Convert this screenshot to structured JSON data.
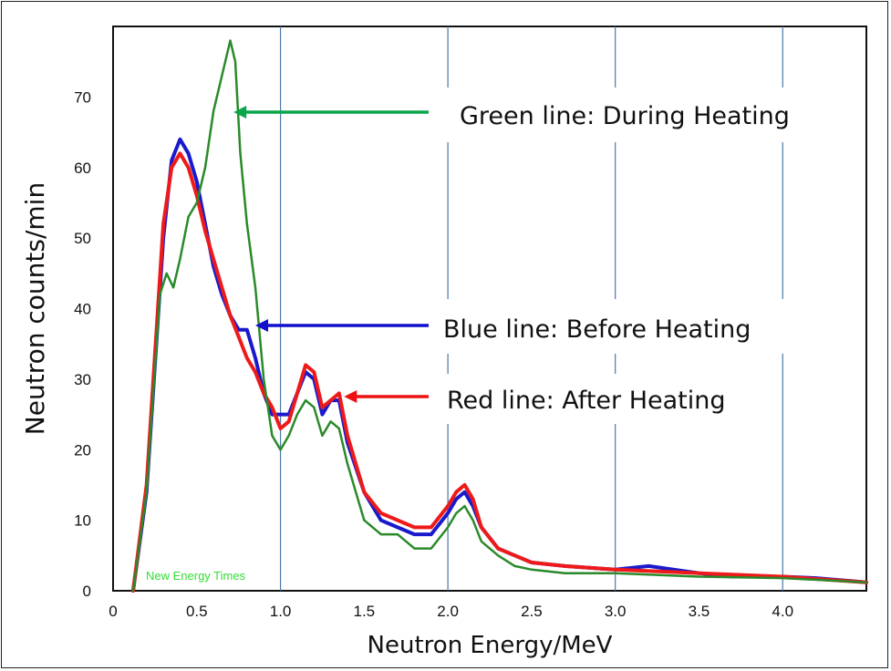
{
  "chart_data": {
    "type": "line",
    "title": "",
    "xlabel": "Neutron Energy/MeV",
    "ylabel": "Neutron counts/min",
    "xlim": [
      0,
      4.5
    ],
    "ylim": [
      0,
      80
    ],
    "x_ticks": [
      "0",
      "0.5",
      "1.0",
      "1.5",
      "2.0",
      "2.5",
      "3.0",
      "3.5",
      "4.0"
    ],
    "y_ticks": [
      "0",
      "10",
      "20",
      "30",
      "40",
      "50",
      "60",
      "70"
    ],
    "vertical_gridlines_at": [
      1.0,
      2.0,
      3.0,
      4.0
    ],
    "grid": "vertical lines only",
    "watermark": "New Energy Times",
    "annotations": [
      {
        "text": "Green line: During Heating",
        "color": "#0aa64a",
        "arrow_tip": [
          0.72,
          68
        ]
      },
      {
        "text": "Blue line: Before Heating",
        "color": "#1010cc",
        "arrow_tip": [
          0.85,
          37
        ]
      },
      {
        "text": "Red line: After Heating",
        "color": "#ee1111",
        "arrow_tip": [
          1.38,
          27
        ]
      }
    ],
    "series": [
      {
        "color": "#1a1acc",
        "points": [
          [
            0.12,
            0
          ],
          [
            0.2,
            14
          ],
          [
            0.3,
            50
          ],
          [
            0.35,
            61
          ],
          [
            0.4,
            64
          ],
          [
            0.45,
            62
          ],
          [
            0.5,
            58
          ],
          [
            0.55,
            52
          ],
          [
            0.6,
            46
          ],
          [
            0.65,
            42
          ],
          [
            0.7,
            39
          ],
          [
            0.75,
            37
          ],
          [
            0.8,
            37
          ],
          [
            0.85,
            33
          ],
          [
            0.9,
            28
          ],
          [
            0.95,
            25
          ],
          [
            1.0,
            25
          ],
          [
            1.05,
            25
          ],
          [
            1.1,
            28
          ],
          [
            1.15,
            31
          ],
          [
            1.2,
            30
          ],
          [
            1.25,
            25
          ],
          [
            1.3,
            27
          ],
          [
            1.35,
            27
          ],
          [
            1.4,
            21
          ],
          [
            1.5,
            14
          ],
          [
            1.6,
            10
          ],
          [
            1.7,
            9
          ],
          [
            1.8,
            8
          ],
          [
            1.9,
            8
          ],
          [
            2.0,
            11
          ],
          [
            2.05,
            13
          ],
          [
            2.1,
            14
          ],
          [
            2.15,
            12
          ],
          [
            2.2,
            9
          ],
          [
            2.3,
            6
          ],
          [
            2.4,
            5
          ],
          [
            2.5,
            4
          ],
          [
            2.7,
            3.5
          ],
          [
            3.0,
            3
          ],
          [
            3.2,
            3.5
          ],
          [
            3.5,
            2.5
          ],
          [
            3.7,
            2
          ],
          [
            4.0,
            2
          ],
          [
            4.2,
            1.8
          ],
          [
            4.5,
            1.2
          ]
        ]
      },
      {
        "color": "#ee1a1a",
        "points": [
          [
            0.12,
            0
          ],
          [
            0.2,
            15
          ],
          [
            0.3,
            52
          ],
          [
            0.35,
            60
          ],
          [
            0.4,
            62
          ],
          [
            0.45,
            60
          ],
          [
            0.5,
            56
          ],
          [
            0.55,
            51
          ],
          [
            0.6,
            47
          ],
          [
            0.65,
            43
          ],
          [
            0.7,
            39
          ],
          [
            0.75,
            36
          ],
          [
            0.8,
            33
          ],
          [
            0.85,
            31
          ],
          [
            0.9,
            28
          ],
          [
            0.95,
            26
          ],
          [
            1.0,
            23
          ],
          [
            1.05,
            24
          ],
          [
            1.1,
            28
          ],
          [
            1.15,
            32
          ],
          [
            1.2,
            31
          ],
          [
            1.25,
            26
          ],
          [
            1.3,
            27
          ],
          [
            1.35,
            28
          ],
          [
            1.4,
            22
          ],
          [
            1.5,
            14
          ],
          [
            1.6,
            11
          ],
          [
            1.7,
            10
          ],
          [
            1.8,
            9
          ],
          [
            1.9,
            9
          ],
          [
            2.0,
            12
          ],
          [
            2.05,
            14
          ],
          [
            2.1,
            15
          ],
          [
            2.15,
            13
          ],
          [
            2.2,
            9
          ],
          [
            2.3,
            6
          ],
          [
            2.4,
            5
          ],
          [
            2.5,
            4
          ],
          [
            2.7,
            3.5
          ],
          [
            3.0,
            3
          ],
          [
            3.5,
            2.5
          ],
          [
            4.0,
            2
          ],
          [
            4.5,
            1.2
          ]
        ]
      },
      {
        "color": "#2a8a2a",
        "points": [
          [
            0.12,
            0
          ],
          [
            0.2,
            14
          ],
          [
            0.28,
            42
          ],
          [
            0.32,
            45
          ],
          [
            0.36,
            43
          ],
          [
            0.4,
            47
          ],
          [
            0.45,
            53
          ],
          [
            0.5,
            55
          ],
          [
            0.55,
            60
          ],
          [
            0.6,
            68
          ],
          [
            0.65,
            73
          ],
          [
            0.7,
            78
          ],
          [
            0.73,
            75
          ],
          [
            0.76,
            62
          ],
          [
            0.8,
            52
          ],
          [
            0.85,
            43
          ],
          [
            0.9,
            30
          ],
          [
            0.95,
            22
          ],
          [
            1.0,
            20
          ],
          [
            1.05,
            22
          ],
          [
            1.1,
            25
          ],
          [
            1.15,
            27
          ],
          [
            1.2,
            26
          ],
          [
            1.25,
            22
          ],
          [
            1.3,
            24
          ],
          [
            1.35,
            23
          ],
          [
            1.4,
            18
          ],
          [
            1.5,
            10
          ],
          [
            1.6,
            8
          ],
          [
            1.7,
            8
          ],
          [
            1.8,
            6
          ],
          [
            1.9,
            6
          ],
          [
            2.0,
            9
          ],
          [
            2.05,
            11
          ],
          [
            2.1,
            12
          ],
          [
            2.15,
            10
          ],
          [
            2.2,
            7
          ],
          [
            2.3,
            5
          ],
          [
            2.4,
            3.5
          ],
          [
            2.5,
            3
          ],
          [
            2.7,
            2.5
          ],
          [
            3.0,
            2.5
          ],
          [
            3.5,
            2
          ],
          [
            4.0,
            1.8
          ],
          [
            4.5,
            1.2
          ]
        ]
      }
    ]
  }
}
